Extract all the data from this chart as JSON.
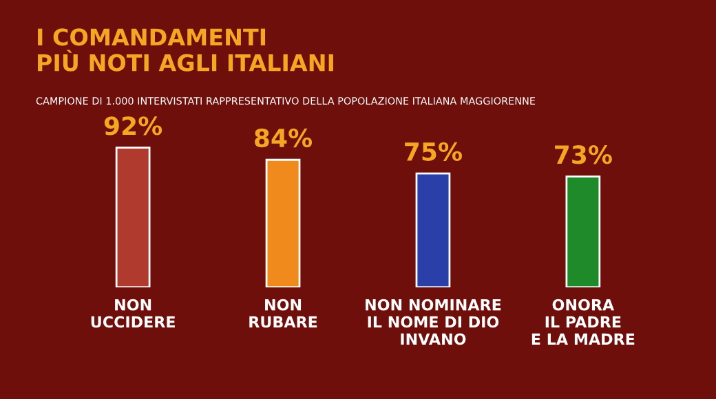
{
  "chart_data": {
    "type": "bar",
    "title": "I COMANDAMENTI\nPIÙ NOTI AGLI ITALIANI",
    "subtitle": "CAMPIONE DI 1.000 INTERVISTATI RAPPRESENTATIVO DELLA POPOLAZIONE ITALIANA MAGGIORENNE",
    "categories": [
      "NON\nUCCIDERE",
      "NON\nRUBARE",
      "NON NOMINARE\nIL NOME DI DIO\nINVANO",
      "ONORA\nIL PADRE\nE LA MADRE"
    ],
    "values": [
      92,
      84,
      75,
      73
    ],
    "colors": [
      "#b03a2e",
      "#f08a1c",
      "#2a3fa8",
      "#1f8a2a"
    ],
    "value_labels": [
      "92%",
      "84%",
      "75%",
      "73%"
    ],
    "tick_labels": "x",
    "grid": false,
    "legend": false
  }
}
